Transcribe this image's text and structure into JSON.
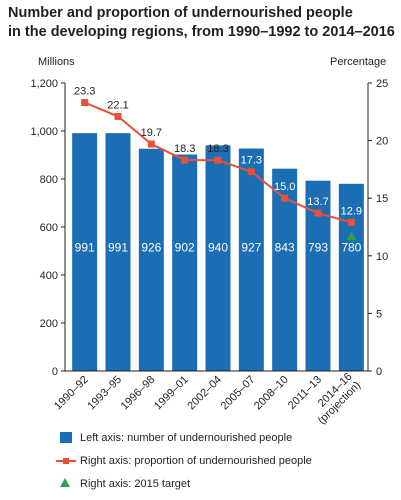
{
  "title_line1": "Number and proportion of undernourished people",
  "title_line2": "in the developing regions, from 1990–1992 to 2014–2016",
  "left_unit": "Millions",
  "right_unit": "Percentage",
  "colors": {
    "bar": "#1b6db4",
    "line": "#e8503a",
    "target": "#2e9e4f",
    "text": "#231f20"
  },
  "legend": {
    "bars": "Left axis: number of undernourished people",
    "line": "Right axis: proportion of undernourished people",
    "target": "Right axis: 2015 target"
  },
  "chart_data": {
    "type": "bar",
    "categories": [
      "1990–92",
      "1993–95",
      "1996–98",
      "1999–01",
      "2002–04",
      "2005–07",
      "2008–10",
      "2011–13",
      "2014–16 (projection)"
    ],
    "left_axis": {
      "label": "Millions",
      "ylim": [
        0,
        1200
      ],
      "ticks": [
        "0",
        "200",
        "400",
        "600",
        "800",
        "1,000",
        "1,200"
      ]
    },
    "right_axis": {
      "label": "Percentage",
      "ylim": [
        0,
        25
      ],
      "ticks": [
        "0",
        "5",
        "10",
        "15",
        "20",
        "25"
      ]
    },
    "series": [
      {
        "name": "Left axis: number of undernourished people",
        "axis": "left",
        "type": "bar",
        "values": [
          991,
          991,
          926,
          902,
          940,
          927,
          843,
          793,
          780
        ]
      },
      {
        "name": "Right axis: proportion of undernourished people",
        "axis": "right",
        "type": "line",
        "values": [
          23.3,
          22.1,
          19.7,
          18.3,
          18.3,
          17.3,
          15.0,
          13.7,
          12.9
        ]
      },
      {
        "name": "Right axis: 2015 target",
        "axis": "right",
        "type": "point",
        "points": [
          {
            "category": "2014–16 (projection)",
            "value": 11.7
          }
        ]
      }
    ],
    "legend_position": "bottom"
  }
}
